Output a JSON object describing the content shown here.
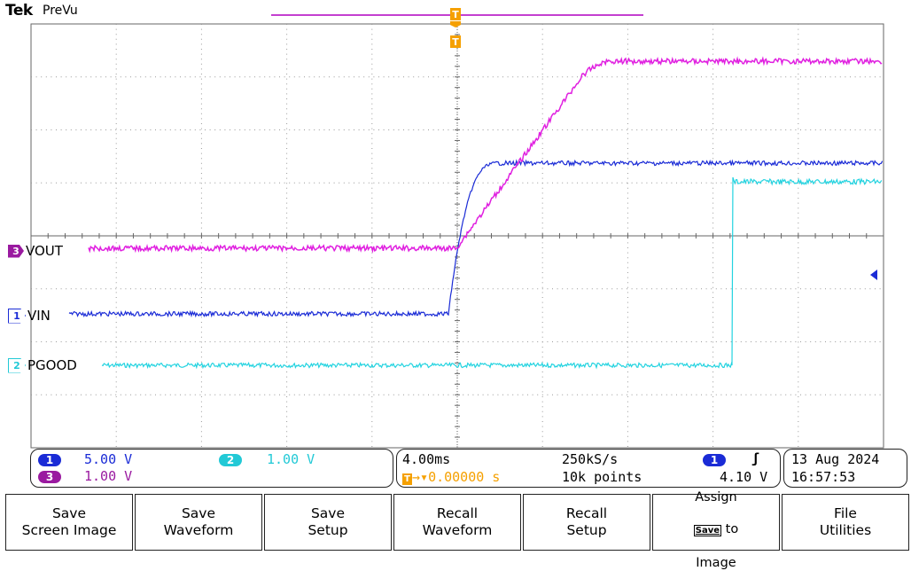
{
  "header": {
    "brand": "Tek",
    "mode": "PreVu"
  },
  "markers": {
    "trigger_top": "T",
    "trigger_pos": "T",
    "ch3_num": "3",
    "ch1_num": "1",
    "ch2_num": "2"
  },
  "channels": {
    "vout": {
      "name": "VOUT",
      "color": "#e020e0",
      "badge_color": "#9a1aa0"
    },
    "vin": {
      "name": "VIN",
      "color": "#1a2bd6",
      "badge_color": "#1a2bd6"
    },
    "pgood": {
      "name": "PGOOD",
      "color": "#22d3e0",
      "badge_color": "#22c9d6"
    }
  },
  "readouts": {
    "ch1": {
      "num": "1",
      "scale": "5.00 V"
    },
    "ch2": {
      "num": "2",
      "scale": "1.00 V"
    },
    "ch3": {
      "num": "3",
      "scale": "1.00 V"
    }
  },
  "timebase": {
    "per_div": "4.00ms",
    "sample_rate": "250kS/s",
    "delay": "0.00000 s",
    "record": "10k points",
    "trig_source": "1",
    "trig_level": "4.10 V",
    "date": "13 Aug 2024",
    "time": "16:57:53"
  },
  "menu": [
    "Save\nScreen Image",
    "Save\nWaveform",
    "Save\nSetup",
    "Recall\nWaveform",
    "Recall\nSetup",
    "Assign\n[Save] to\nImage",
    "File\nUtilities"
  ],
  "menu_assign": {
    "line1": "Assign",
    "key": "Save",
    "line2b": " to",
    "line3": "Image"
  },
  "colors": {
    "grid": "#888888",
    "trigger": "#f5a000",
    "trigger_bar": "#b000c0"
  }
}
